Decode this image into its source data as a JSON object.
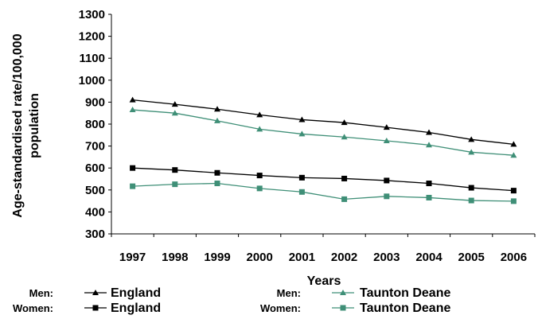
{
  "chart_data": {
    "type": "line",
    "xlabel": "Years",
    "ylabel_line1": "Age-standardised rate/100,000",
    "ylabel_line2": "population",
    "ylim": [
      300,
      1300
    ],
    "yticks": [
      "1300",
      "1200",
      "1100",
      "1000",
      "900",
      "800",
      "700",
      "600",
      "500",
      "400",
      "300"
    ],
    "categories": [
      "1997",
      "1998",
      "1999",
      "2000",
      "2001",
      "2002",
      "2003",
      "2004",
      "2005",
      "2006"
    ],
    "series": [
      {
        "id": "men_england",
        "prefix": "Men:",
        "name": "England",
        "color": "#000000",
        "marker": "triangle",
        "values": [
          910,
          890,
          868,
          842,
          820,
          807,
          785,
          762,
          730,
          708
        ]
      },
      {
        "id": "men_taunton",
        "prefix": "Men:",
        "name": "Taunton Deane",
        "color": "#3f8f77",
        "marker": "triangle",
        "values": [
          865,
          850,
          815,
          777,
          755,
          741,
          724,
          705,
          672,
          658
        ]
      },
      {
        "id": "women_england",
        "prefix": "Women:",
        "name": "England",
        "color": "#000000",
        "marker": "square",
        "values": [
          600,
          591,
          578,
          566,
          556,
          552,
          543,
          530,
          510,
          497
        ]
      },
      {
        "id": "women_taunton",
        "prefix": "Women:",
        "name": "Taunton Deane",
        "color": "#3f8f77",
        "marker": "square",
        "values": [
          517,
          526,
          530,
          507,
          491,
          458,
          471,
          465,
          452,
          449
        ]
      }
    ],
    "legend_position": "bottom",
    "grid": false
  }
}
